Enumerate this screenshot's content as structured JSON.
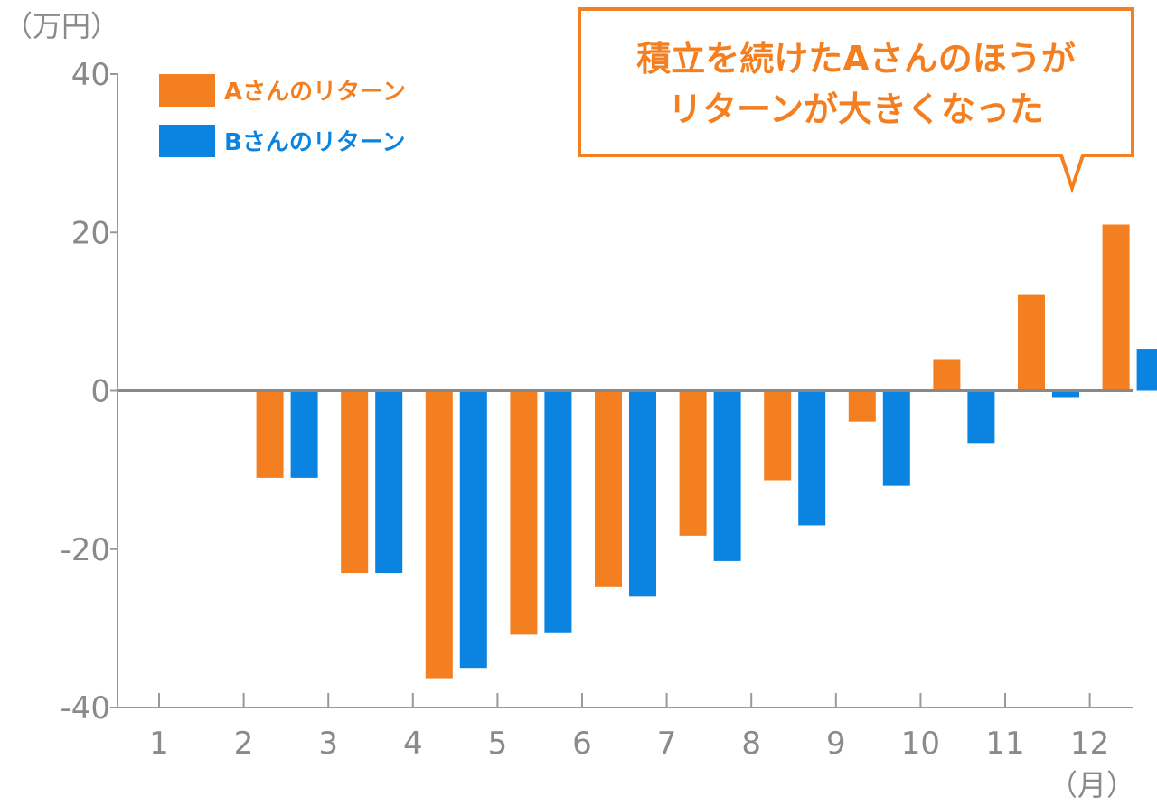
{
  "chart_data": {
    "type": "bar",
    "categories": [
      "1",
      "2",
      "3",
      "4",
      "5",
      "6",
      "7",
      "8",
      "9",
      "10",
      "11",
      "12"
    ],
    "series": [
      {
        "name": "Aさんのリターン",
        "color": "#F47F20",
        "values": [
          0,
          -11,
          -23,
          -36.3,
          -30.8,
          -24.8,
          -18.3,
          -11.3,
          -3.9,
          4,
          12.2,
          21
        ]
      },
      {
        "name": "Bさんのリターン",
        "color": "#0A84E0",
        "values": [
          0,
          -11,
          -23,
          -35,
          -30.5,
          -26,
          -21.5,
          -17,
          -12,
          -6.6,
          -0.8,
          5.3
        ]
      }
    ],
    "y_unit": "（万円）",
    "x_unit": "（月）",
    "ylim": [
      -40,
      40
    ],
    "y_ticks": [
      "40",
      "20",
      "0",
      "-20",
      "-40"
    ],
    "y_tick_values": [
      40,
      20,
      0,
      -20,
      -40
    ],
    "legend_position": "top-left",
    "grid": false
  },
  "callout": {
    "lines": [
      "積立を続けたAさんのほうが",
      "リターンが大きくなった"
    ],
    "color": "#F47F20"
  },
  "colors": {
    "axis": "#999999",
    "zero_line": "#888888",
    "text": "#8a8a8a"
  }
}
